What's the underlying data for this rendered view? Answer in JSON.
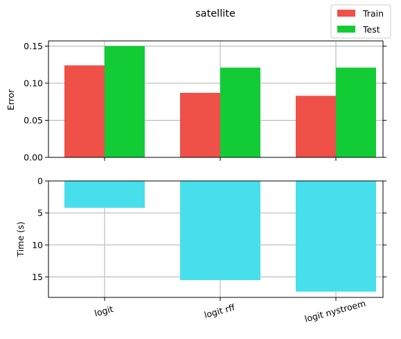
{
  "chart_data": [
    {
      "type": "bar",
      "title": "satellite",
      "ylabel": "Error",
      "xlabel": "",
      "categories": [
        "logit",
        "logit rff",
        "logit nystroem"
      ],
      "series": [
        {
          "name": "Train",
          "values": [
            0.124,
            0.087,
            0.083
          ],
          "color": "#ef5048"
        },
        {
          "name": "Test",
          "values": [
            0.15,
            0.121,
            0.121
          ],
          "color": "#12cc36"
        }
      ],
      "ylim": [
        0,
        0.157
      ],
      "yticks": [
        0.0,
        0.05,
        0.1,
        0.15
      ],
      "ytick_labels": [
        "0.00",
        "0.05",
        "0.10",
        "0.15"
      ],
      "grid": true,
      "legend": "top-right"
    },
    {
      "type": "bar",
      "title": "",
      "ylabel": "Time (s)",
      "xlabel": "",
      "categories": [
        "logit",
        "logit rff",
        "logit nystroem"
      ],
      "series": [
        {
          "values": [
            4.2,
            15.5,
            17.3
          ],
          "color": "#48dfec"
        }
      ],
      "ylim": [
        0,
        18.2
      ],
      "y_inverted": true,
      "yticks": [
        0,
        5,
        10,
        15
      ],
      "ytick_labels": [
        "0",
        "5",
        "10",
        "15"
      ],
      "xtick_labels": [
        "logit",
        "logit rff",
        "logit nystroem"
      ],
      "xtick_rotation_deg": 15,
      "grid": true
    }
  ]
}
